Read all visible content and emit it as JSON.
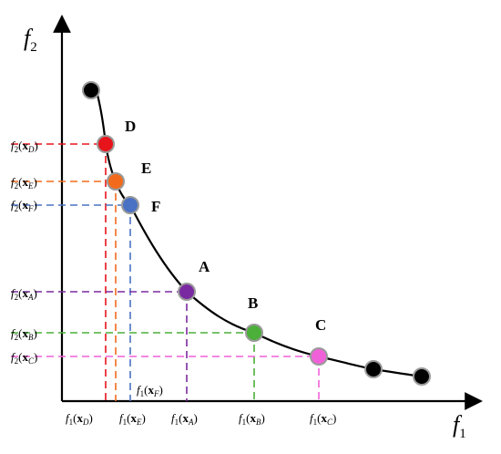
{
  "axes": {
    "x_title": "f",
    "x_title_sub": "1",
    "y_title": "f",
    "y_title_sub": "2"
  },
  "front_color": "#000000",
  "points": [
    {
      "id": "D",
      "label": "D",
      "color": "#e8141b",
      "f1_label": "f1(xD)",
      "f2_label": "f2(xD)"
    },
    {
      "id": "E",
      "label": "E",
      "color": "#f26b1d",
      "f1_label": "f1(xE)",
      "f2_label": "f2(xE)"
    },
    {
      "id": "F",
      "label": "F",
      "color": "#4a72c4",
      "f1_label": "f1(xF)",
      "f2_label": "f2(xF)"
    },
    {
      "id": "A",
      "label": "A",
      "color": "#7a2aa0",
      "f1_label": "f1(xA)",
      "f2_label": "f2(xA)"
    },
    {
      "id": "B",
      "label": "B",
      "color": "#4caf3a",
      "f1_label": "f1(xB)",
      "f2_label": "f2(xB)"
    },
    {
      "id": "C",
      "label": "C",
      "color": "#f060d8",
      "f1_label": "f1(xC)",
      "f2_label": "f2(xC)"
    }
  ],
  "extra_points": [
    {
      "id": "end-top",
      "color": "#000000"
    },
    {
      "id": "end-right-1",
      "color": "#000000"
    },
    {
      "id": "end-right-2",
      "color": "#000000"
    }
  ]
}
